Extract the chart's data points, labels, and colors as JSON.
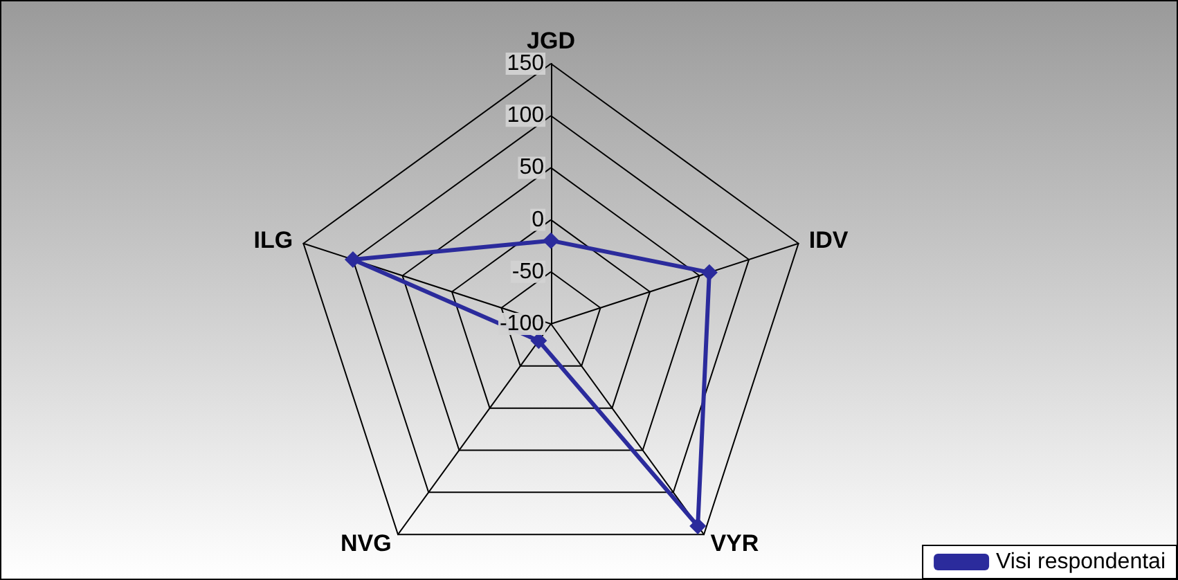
{
  "chart_data": {
    "type": "radar",
    "categories": [
      "JGD",
      "IDV",
      "VYR",
      "NVG",
      "ILG"
    ],
    "series": [
      {
        "name": "Visi respondentai",
        "color": "#2b2b9c",
        "values": [
          -20,
          60,
          140,
          -80,
          100
        ]
      }
    ],
    "ylim": [
      -100,
      150
    ],
    "yticks": [
      -100,
      -50,
      0,
      50,
      100,
      150
    ],
    "marker": "diamond",
    "line_style": "solid",
    "grid": true,
    "legend": "bottom right"
  }
}
